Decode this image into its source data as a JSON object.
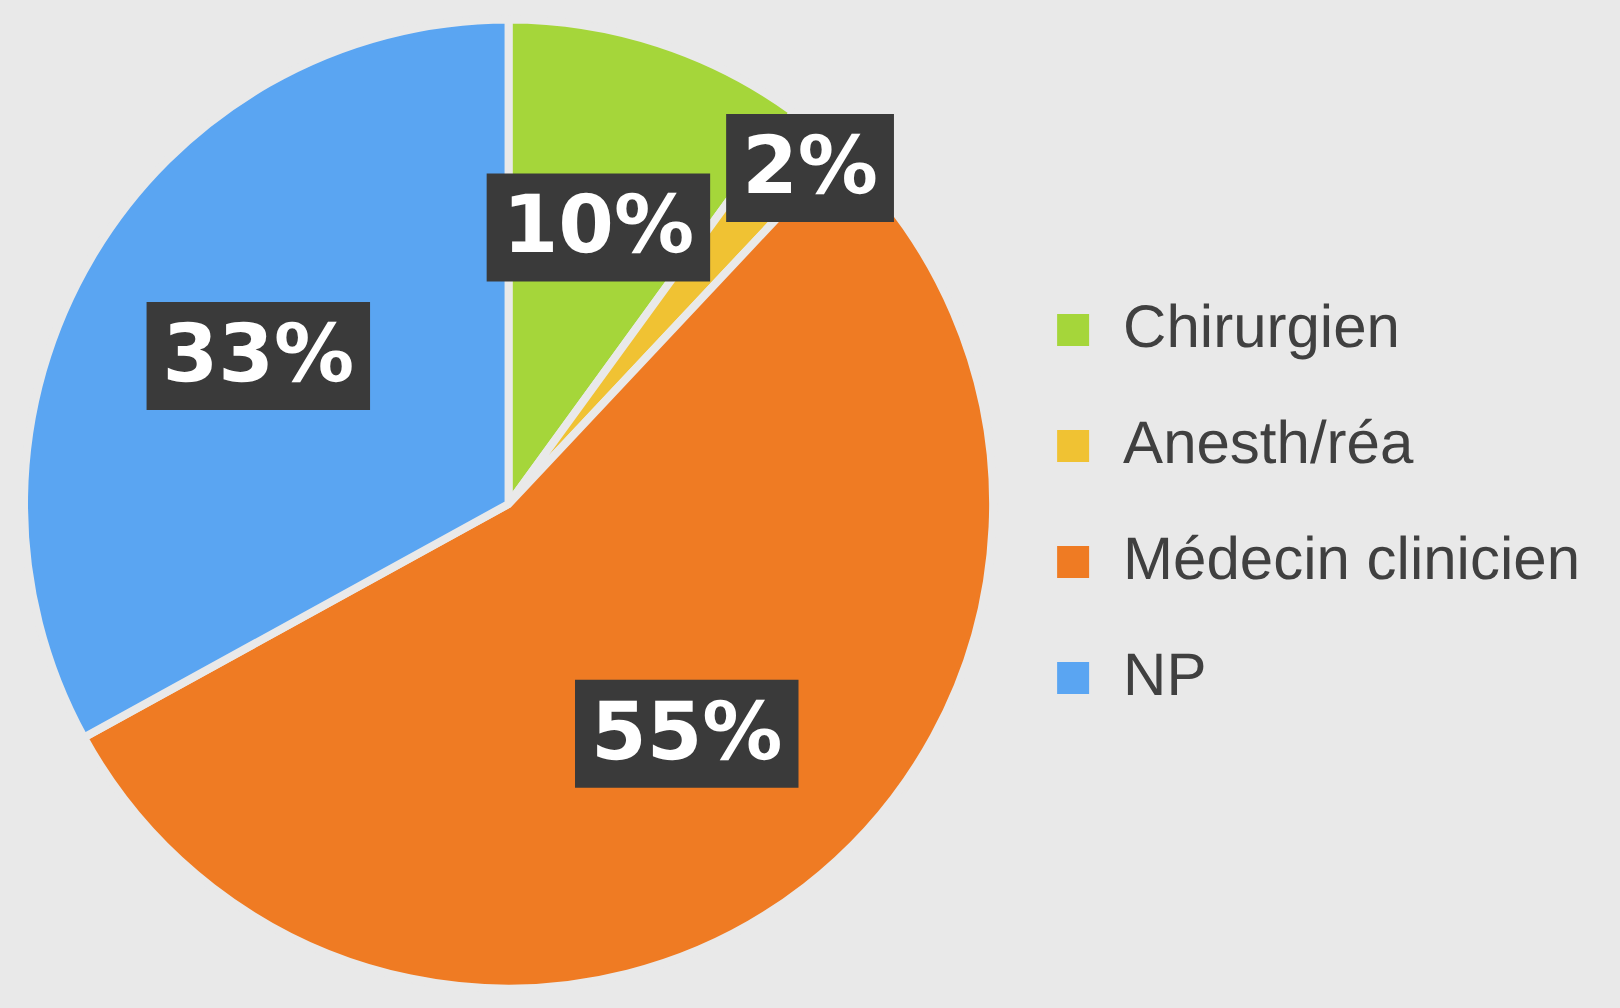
{
  "chart_data": {
    "type": "pie",
    "categories": [
      "Chirurgien",
      "Anesth/réa",
      "Médecin clinicien",
      "NP"
    ],
    "values": [
      10,
      2,
      55,
      33
    ],
    "colors": [
      "#a5d63a",
      "#f0c233",
      "#ef7b23",
      "#5aa5f2"
    ],
    "value_labels": [
      "10%",
      "2%",
      "55%",
      "33%"
    ],
    "legend": "right"
  }
}
